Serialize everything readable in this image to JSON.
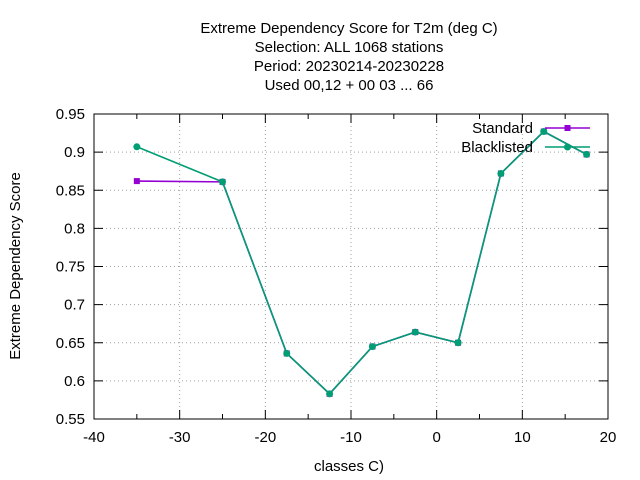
{
  "chart_data": {
    "type": "line",
    "title_lines": [
      "Extreme Dependency Score  for T2m (deg C)",
      "Selection: ALL   1068 stations",
      "Period: 20230214-20230228",
      "Used  00,12  + 00 03 ... 66"
    ],
    "xlabel": "classes C)",
    "ylabel": "Extreme Dependency Score",
    "xlim": [
      -40,
      20
    ],
    "ylim": [
      0.55,
      0.95
    ],
    "x_ticks": [
      -40,
      -30,
      -20,
      -10,
      0,
      10,
      20
    ],
    "y_ticks": [
      0.55,
      0.6,
      0.65,
      0.7,
      0.75,
      0.8,
      0.85,
      0.9,
      0.95
    ],
    "x_tick_labels": [
      "-40",
      "-30",
      "-20",
      "-10",
      "0",
      "10",
      "20"
    ],
    "y_tick_labels": [
      "0.55",
      "0.6",
      "0.65",
      "0.7",
      "0.75",
      "0.8",
      "0.85",
      "0.9",
      "0.95"
    ],
    "grid": true,
    "legend_position": "top-right",
    "series": [
      {
        "name": "Standard",
        "color": "#9400d3",
        "marker": "square",
        "x": [
          -35,
          -25,
          -17.5,
          -12.5,
          -7.5,
          -2.5,
          2.5,
          7.5,
          12.5,
          17.5
        ],
        "y": [
          0.862,
          0.861,
          0.636,
          0.583,
          0.645,
          0.664,
          0.65,
          0.872,
          0.927,
          0.897
        ]
      },
      {
        "name": "Blacklisted",
        "color": "#009e73",
        "marker": "circle",
        "x": [
          -35,
          -25,
          -17.5,
          -12.5,
          -7.5,
          -2.5,
          2.5,
          7.5,
          12.5,
          17.5
        ],
        "y": [
          0.907,
          0.861,
          0.636,
          0.583,
          0.645,
          0.664,
          0.65,
          0.872,
          0.927,
          0.897
        ]
      }
    ]
  }
}
